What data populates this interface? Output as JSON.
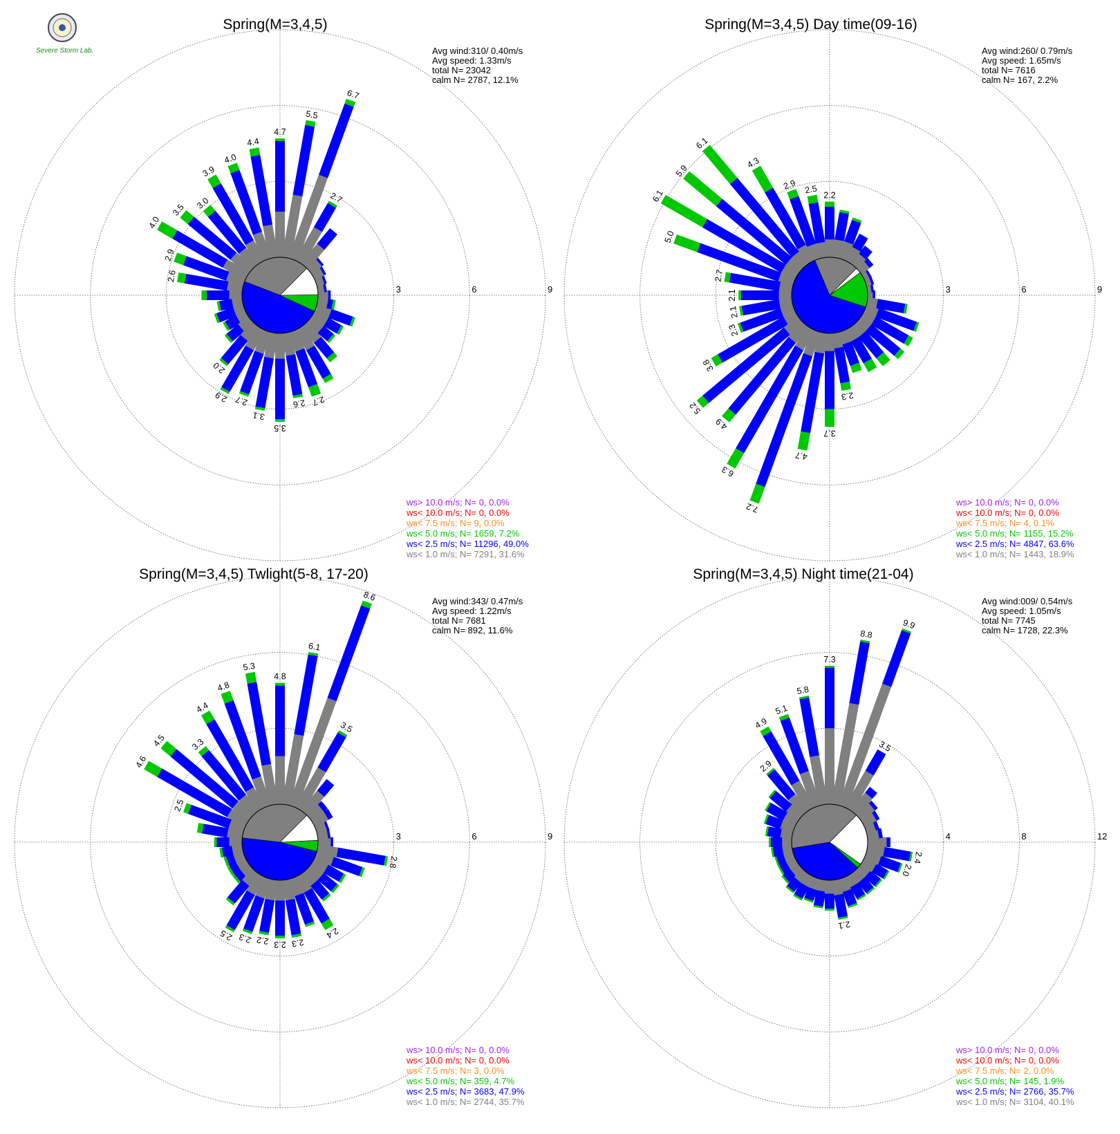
{
  "logo": {
    "lab_text": "Severe Storm Lab.",
    "icon": "university-seal-icon"
  },
  "colors": {
    "gray": "#808080",
    "blue": "#0000ff",
    "green": "#00c800",
    "orange": "#ff8c1a",
    "red": "#ff0000",
    "purple": "#a020f0"
  },
  "chart_data": [
    {
      "type": "wind-rose",
      "title": "Spring(M=3,4,5)",
      "stats": [
        "Avg wind:310/ 0.40m/s",
        "Avg speed: 1.33m/s",
        "total N=       23042",
        "calm N=   2787,  12.1%"
      ],
      "rings": [
        "3",
        "6",
        "9"
      ],
      "rmax": 9,
      "sector_total": [
        0.5,
        0.35,
        0.4,
        0.5,
        0.6,
        1.8,
        2.7,
        6.7,
        5.5,
        4.7,
        4.4,
        4.0,
        3.9,
        3.0,
        3.5,
        4.0,
        2.9,
        2.6,
        1.6,
        1.0,
        1.2,
        1.0,
        1.2,
        2.0,
        2.9,
        2.7,
        3.1,
        3.5,
        2.6,
        2.7,
        2.4,
        1.8,
        1.2,
        1.3,
        1.6,
        0.7
      ],
      "sector_split": [
        [
          0.4,
          0.1,
          0
        ],
        [
          0.25,
          0.1,
          0
        ],
        [
          0.3,
          0.1,
          0
        ],
        [
          0.4,
          0.1,
          0
        ],
        [
          0.5,
          0.1,
          0
        ],
        [
          1.0,
          0.8,
          0
        ],
        [
          1.5,
          1.1,
          0.1
        ],
        [
          3.5,
          3.0,
          0.2
        ],
        [
          2.5,
          2.8,
          0.2
        ],
        [
          1.8,
          2.8,
          0.1
        ],
        [
          1.3,
          2.8,
          0.3
        ],
        [
          1.1,
          2.6,
          0.3
        ],
        [
          0.9,
          2.6,
          0.4
        ],
        [
          0.8,
          1.9,
          0.3
        ],
        [
          0.9,
          2.2,
          0.4
        ],
        [
          1.0,
          2.3,
          0.7
        ],
        [
          0.7,
          1.8,
          0.4
        ],
        [
          0.6,
          1.7,
          0.3
        ],
        [
          0.5,
          0.9,
          0.2
        ],
        [
          0.4,
          0.5,
          0.1
        ],
        [
          0.4,
          0.7,
          0.1
        ],
        [
          0.4,
          0.5,
          0.1
        ],
        [
          0.5,
          0.6,
          0.1
        ],
        [
          0.7,
          1.2,
          0.1
        ],
        [
          0.9,
          1.9,
          0.1
        ],
        [
          0.9,
          1.7,
          0.1
        ],
        [
          1.0,
          2.0,
          0.1
        ],
        [
          1.0,
          2.4,
          0.1
        ],
        [
          0.9,
          1.6,
          0.1
        ],
        [
          0.8,
          1.5,
          0.4
        ],
        [
          0.9,
          1.3,
          0.2
        ],
        [
          0.8,
          0.8,
          0.2
        ],
        [
          0.6,
          0.5,
          0.1
        ],
        [
          0.6,
          0.6,
          0.1
        ],
        [
          0.6,
          0.9,
          0.1
        ],
        [
          0.4,
          0.2,
          0.1
        ]
      ],
      "bar_labels": [
        "",
        "",
        "",
        "",
        "",
        "",
        "2.7",
        "6.7",
        "5.5",
        "4.7",
        "4.4",
        "4.0",
        "3.9",
        "3.0",
        "3.5",
        "4.0",
        "2.9",
        "2.6",
        "",
        "",
        "",
        "",
        "",
        "2.0",
        "2.9",
        "2.7",
        "3.1",
        "3.5",
        "2.6",
        "2.7",
        "",
        "",
        "",
        "",
        "",
        ""
      ],
      "pie": [
        0.316,
        0.49,
        0.072
      ],
      "legend": [
        {
          "text": "ws> 10.0 m/s; N=      0,  0.0%",
          "color": "purple"
        },
        {
          "text": "ws< 10.0 m/s; N=      0,  0.0%",
          "color": "red"
        },
        {
          "text": "ws<  7.5 m/s; N=      9,  0.0%",
          "color": "orange"
        },
        {
          "text": "ws<  5.0 m/s; N=  1659,  7.2%",
          "color": "green"
        },
        {
          "text": "ws<  2.5 m/s; N= 11296, 49.0%",
          "color": "blue"
        },
        {
          "text": "ws<  1.0 m/s; N=  7291, 31.6%",
          "color": "gray"
        }
      ]
    },
    {
      "type": "wind-rose",
      "title": "Spring(M=3,4,5) Day time(09-16)",
      "stats": [
        "Avg wind:260/ 0.79m/s",
        "Avg speed: 1.65m/s",
        "total N=        7616",
        "calm N=     167,   2.2%"
      ],
      "rings": [
        "3",
        "6",
        "9"
      ],
      "rmax": 9,
      "sector_total": [
        0.3,
        0.25,
        0.3,
        0.3,
        0.6,
        0.9,
        1.2,
        1.7,
        1.9,
        2.2,
        2.5,
        2.9,
        4.3,
        6.1,
        5.9,
        6.1,
        5.0,
        2.7,
        2.1,
        2.1,
        2.3,
        3.8,
        5.2,
        4.9,
        6.3,
        7.2,
        4.7,
        3.7,
        2.3,
        1.7,
        1.9,
        2.0,
        2.2,
        2.2,
        2.2,
        1.6
      ],
      "sector_split": [
        [
          0.2,
          0.1,
          0
        ],
        [
          0.15,
          0.1,
          0
        ],
        [
          0.2,
          0.1,
          0
        ],
        [
          0.2,
          0.1,
          0
        ],
        [
          0.4,
          0.2,
          0
        ],
        [
          0.5,
          0.4,
          0
        ],
        [
          0.6,
          0.6,
          0
        ],
        [
          0.7,
          0.9,
          0.1
        ],
        [
          0.7,
          1.1,
          0.1
        ],
        [
          0.7,
          1.3,
          0.2
        ],
        [
          0.6,
          1.6,
          0.3
        ],
        [
          0.6,
          2.0,
          0.3
        ],
        [
          0.7,
          2.6,
          1.0
        ],
        [
          0.6,
          3.8,
          1.7
        ],
        [
          0.6,
          3.6,
          1.7
        ],
        [
          0.6,
          3.6,
          1.9
        ],
        [
          0.6,
          3.4,
          1.0
        ],
        [
          0.5,
          2.0,
          0.2
        ],
        [
          0.5,
          1.5,
          0.1
        ],
        [
          0.5,
          1.5,
          0.1
        ],
        [
          0.5,
          1.7,
          0.1
        ],
        [
          0.5,
          3.0,
          0.3
        ],
        [
          0.7,
          4.2,
          0.3
        ],
        [
          0.8,
          3.7,
          0.4
        ],
        [
          0.9,
          4.7,
          0.7
        ],
        [
          1.0,
          5.5,
          0.7
        ],
        [
          0.8,
          3.2,
          0.7
        ],
        [
          0.7,
          2.3,
          0.7
        ],
        [
          0.6,
          1.4,
          0.3
        ],
        [
          0.5,
          0.9,
          0.3
        ],
        [
          0.5,
          1.0,
          0.4
        ],
        [
          0.5,
          1.1,
          0.4
        ],
        [
          0.5,
          1.5,
          0.2
        ],
        [
          0.5,
          1.5,
          0.2
        ],
        [
          0.5,
          1.6,
          0.1
        ],
        [
          0.4,
          1.1,
          0.1
        ]
      ],
      "bar_labels": [
        "",
        "",
        "",
        "",
        "",
        "",
        "",
        "",
        "",
        "2.2",
        "2.5",
        "2.9",
        "4.3",
        "6.1",
        "5.9",
        "6.1",
        "5.0",
        "2.7",
        "2.1",
        "2.1",
        "2.3",
        "3.8",
        "5.2",
        "4.9",
        "6.3",
        "7.2",
        "4.7",
        "3.7",
        "2.3",
        "",
        "",
        "",
        "",
        "",
        "",
        ""
      ],
      "pie": [
        0.189,
        0.636,
        0.152
      ],
      "legend": [
        {
          "text": "ws> 10.0 m/s; N=      0,  0.0%",
          "color": "purple"
        },
        {
          "text": "ws< 10.0 m/s; N=      0,  0.0%",
          "color": "red"
        },
        {
          "text": "ws<  7.5 m/s; N=      4,  0.1%",
          "color": "orange"
        },
        {
          "text": "ws<  5.0 m/s; N=  1155, 15.2%",
          "color": "green"
        },
        {
          "text": "ws<  2.5 m/s; N=  4847, 63.6%",
          "color": "blue"
        },
        {
          "text": "ws<  1.0 m/s; N=  1443, 18.9%",
          "color": "gray"
        }
      ]
    },
    {
      "type": "wind-rose",
      "title": "Spring(M=3,4,5) Twlight(5-8, 17-20)",
      "stats": [
        "Avg wind:343/ 0.47m/s",
        "Avg speed: 1.22m/s",
        "total N=        7681",
        "calm N=     892,  11.6%"
      ],
      "rings": [
        "3",
        "6",
        "9"
      ],
      "rmax": 9,
      "sector_total": [
        0.6,
        0.5,
        0.5,
        0.8,
        0.8,
        1.6,
        3.5,
        8.6,
        6.1,
        4.8,
        5.3,
        4.8,
        4.4,
        3.3,
        4.5,
        4.6,
        2.5,
        1.8,
        1.1,
        0.9,
        0.8,
        0.8,
        0.8,
        1.6,
        2.5,
        2.3,
        2.2,
        2.3,
        2.3,
        2.0,
        2.4,
        1.4,
        1.4,
        1.4,
        2.0,
        2.8
      ],
      "sector_split": [
        [
          0.5,
          0.1,
          0
        ],
        [
          0.4,
          0.1,
          0
        ],
        [
          0.4,
          0.1,
          0
        ],
        [
          0.6,
          0.2,
          0
        ],
        [
          0.6,
          0.2,
          0
        ],
        [
          1.0,
          0.6,
          0
        ],
        [
          1.8,
          1.6,
          0.1
        ],
        [
          4.5,
          3.9,
          0.2
        ],
        [
          2.8,
          3.2,
          0.1
        ],
        [
          1.9,
          2.8,
          0.1
        ],
        [
          1.6,
          3.3,
          0.4
        ],
        [
          1.2,
          3.2,
          0.4
        ],
        [
          0.9,
          3.1,
          0.4
        ],
        [
          0.8,
          2.3,
          0.2
        ],
        [
          0.8,
          3.2,
          0.5
        ],
        [
          0.8,
          3.2,
          0.6
        ],
        [
          0.6,
          1.7,
          0.2
        ],
        [
          0.6,
          1.0,
          0.2
        ],
        [
          0.5,
          0.5,
          0.1
        ],
        [
          0.4,
          0.4,
          0.1
        ],
        [
          0.4,
          0.3,
          0.1
        ],
        [
          0.4,
          0.3,
          0.1
        ],
        [
          0.4,
          0.3,
          0.1
        ],
        [
          0.6,
          0.9,
          0.1
        ],
        [
          0.8,
          1.6,
          0.1
        ],
        [
          0.8,
          1.4,
          0.1
        ],
        [
          0.8,
          1.3,
          0.1
        ],
        [
          0.8,
          1.4,
          0.1
        ],
        [
          0.8,
          1.4,
          0.1
        ],
        [
          0.7,
          1.2,
          0.1
        ],
        [
          0.7,
          1.4,
          0.3
        ],
        [
          0.6,
          0.7,
          0.1
        ],
        [
          0.6,
          0.7,
          0.1
        ],
        [
          0.6,
          0.7,
          0.1
        ],
        [
          0.7,
          1.2,
          0.1
        ],
        [
          0.8,
          1.9,
          0.1
        ]
      ],
      "bar_labels": [
        "",
        "",
        "",
        "",
        "",
        "",
        "3.5",
        "8.6",
        "6.1",
        "4.8",
        "5.3",
        "4.8",
        "4.4",
        "3.3",
        "4.5",
        "4.6",
        "2.5",
        "",
        "",
        "",
        "",
        "",
        "",
        "",
        "2.5",
        "2.3",
        "2.2",
        "2.3",
        "2.3",
        "",
        "2.4",
        "",
        "",
        "",
        "",
        "2.8"
      ],
      "pie": [
        0.357,
        0.479,
        0.047
      ],
      "legend": [
        {
          "text": "ws> 10.0 m/s; N=      0,  0.0%",
          "color": "purple"
        },
        {
          "text": "ws< 10.0 m/s; N=      0,  0.0%",
          "color": "red"
        },
        {
          "text": "ws<  7.5 m/s; N=      3,  0.0%",
          "color": "orange"
        },
        {
          "text": "ws<  5.0 m/s; N=    359,  4.7%",
          "color": "green"
        },
        {
          "text": "ws<  2.5 m/s; N=  3683, 47.9%",
          "color": "blue"
        },
        {
          "text": "ws<  1.0 m/s; N=  2744, 35.7%",
          "color": "gray"
        }
      ]
    },
    {
      "type": "wind-rose",
      "title": "Spring(M=3,4,5) Night time(21-04)",
      "stats": [
        "Avg wind:009/ 0.54m/s",
        "Avg speed: 1.05m/s",
        "total N=        7745",
        "calm N=   1728,  22.3%"
      ],
      "rings": [
        "4",
        "8",
        "12"
      ],
      "rmax": 12,
      "sector_total": [
        1.2,
        0.8,
        0.7,
        0.9,
        1.1,
        1.6,
        3.5,
        9.9,
        8.8,
        7.3,
        5.8,
        5.1,
        4.9,
        2.9,
        2.0,
        1.8,
        1.6,
        1.4,
        1.2,
        1.1,
        1.0,
        1.0,
        1.1,
        1.3,
        1.4,
        1.3,
        1.5,
        1.6,
        2.1,
        1.6,
        1.4,
        1.4,
        1.4,
        1.5,
        2.0,
        2.4
      ],
      "sector_split": [
        [
          1.0,
          0.2,
          0
        ],
        [
          0.6,
          0.2,
          0
        ],
        [
          0.5,
          0.2,
          0
        ],
        [
          0.7,
          0.2,
          0
        ],
        [
          0.9,
          0.2,
          0
        ],
        [
          1.2,
          0.4,
          0
        ],
        [
          2.2,
          1.3,
          0
        ],
        [
          6.8,
          3.0,
          0.1
        ],
        [
          5.4,
          3.3,
          0.1
        ],
        [
          4.0,
          3.2,
          0.1
        ],
        [
          2.6,
          3.1,
          0.1
        ],
        [
          1.9,
          3.0,
          0.2
        ],
        [
          1.6,
          3.0,
          0.3
        ],
        [
          1.1,
          1.7,
          0.1
        ],
        [
          0.8,
          1.1,
          0.1
        ],
        [
          0.7,
          1.0,
          0.1
        ],
        [
          0.7,
          0.8,
          0.1
        ],
        [
          0.6,
          0.7,
          0.1
        ],
        [
          0.5,
          0.6,
          0.1
        ],
        [
          0.5,
          0.5,
          0.1
        ],
        [
          0.5,
          0.4,
          0.1
        ],
        [
          0.5,
          0.4,
          0.1
        ],
        [
          0.5,
          0.5,
          0.1
        ],
        [
          0.6,
          0.6,
          0.1
        ],
        [
          0.6,
          0.7,
          0.1
        ],
        [
          0.6,
          0.6,
          0.1
        ],
        [
          0.6,
          0.8,
          0.1
        ],
        [
          0.7,
          0.8,
          0.1
        ],
        [
          0.8,
          1.2,
          0.1
        ],
        [
          0.7,
          0.8,
          0.1
        ],
        [
          0.6,
          0.7,
          0.1
        ],
        [
          0.6,
          0.7,
          0.1
        ],
        [
          0.6,
          0.7,
          0.1
        ],
        [
          0.7,
          0.7,
          0.1
        ],
        [
          0.8,
          1.1,
          0.1
        ],
        [
          0.9,
          1.4,
          0.1
        ]
      ],
      "bar_labels": [
        "",
        "",
        "",
        "",
        "",
        "",
        "3.5",
        "9.9",
        "8.8",
        "7.3",
        "5.8",
        "5.1",
        "4.9",
        "2.9",
        "",
        "",
        "",
        "",
        "",
        "",
        "",
        "",
        "",
        "",
        "",
        "",
        "",
        "",
        "2.1",
        "",
        "",
        "",
        "",
        "",
        "2.0",
        "2.4"
      ],
      "pie": [
        0.401,
        0.357,
        0.019
      ],
      "legend": [
        {
          "text": "ws> 10.0 m/s; N=      0,  0.0%",
          "color": "purple"
        },
        {
          "text": "ws< 10.0 m/s; N=      0,  0.0%",
          "color": "red"
        },
        {
          "text": "ws<  7.5 m/s; N=      2,  0.0%",
          "color": "orange"
        },
        {
          "text": "ws<  5.0 m/s; N=    145,  1.9%",
          "color": "green"
        },
        {
          "text": "ws<  2.5 m/s; N=  2766, 35.7%",
          "color": "blue"
        },
        {
          "text": "ws<  1.0 m/s; N=  3104, 40.1%",
          "color": "gray"
        }
      ]
    }
  ]
}
